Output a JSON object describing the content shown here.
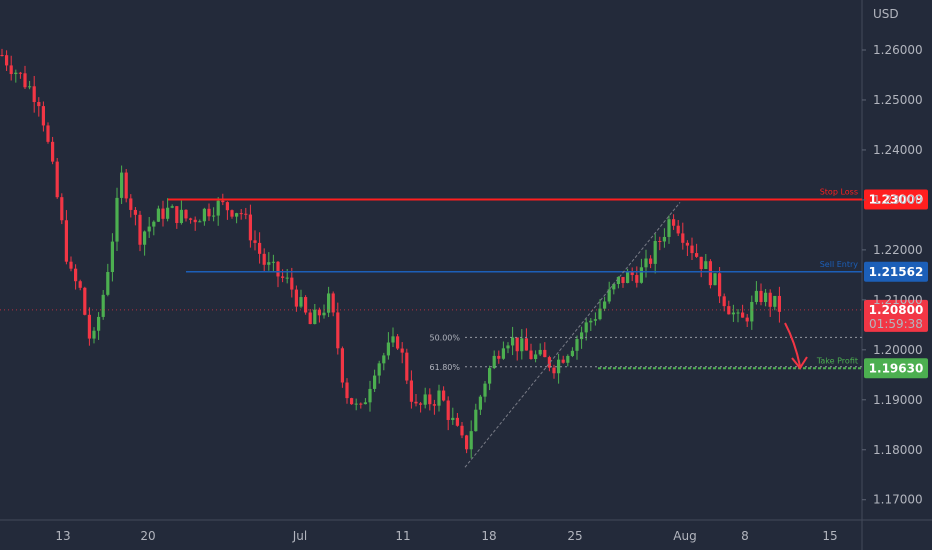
{
  "chart_data": {
    "type": "candlestick",
    "currency": "USD",
    "y_axis": {
      "min": 1.165,
      "max": 1.268,
      "ticks": [
        "1.26000",
        "1.25000",
        "1.24000",
        "1.23000",
        "1.22000",
        "1.21000",
        "1.20000",
        "1.19000",
        "1.18000",
        "1.17000"
      ]
    },
    "x_axis": {
      "labels": [
        "13",
        "20",
        "Jul",
        "11",
        "18",
        "25",
        "Aug",
        "8",
        "15"
      ]
    },
    "levels": [
      {
        "label": "Stop Loss",
        "value": "1.23009",
        "price": 1.23009,
        "color": "#ff1f1f"
      },
      {
        "label": "Sell Entry",
        "value": "1.21562",
        "price": 1.21562,
        "color": "#1c5fb8"
      },
      {
        "label": "Take Profit",
        "value": "1.19630",
        "price": 1.1963,
        "color": "#4caf50"
      }
    ],
    "last_price": {
      "value": "1.20800",
      "countdown": "01:59:38",
      "price": 1.208,
      "color": "#f23645"
    },
    "fib": [
      {
        "label": "50.00%",
        "price": 1.2025
      },
      {
        "label": "61.80%",
        "price": 1.1966
      }
    ],
    "colors": {
      "background": "#232a3a",
      "up": "#4caf50",
      "down": "#f23645",
      "text": "#b2b5be"
    }
  }
}
